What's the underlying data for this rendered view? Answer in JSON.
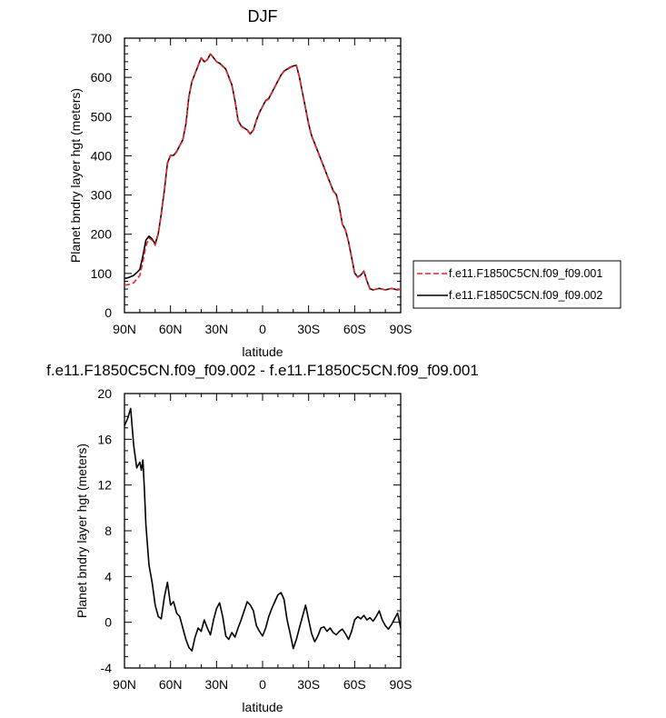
{
  "chart_data": [
    {
      "type": "line",
      "title": "DJF",
      "xlabel": "latitude",
      "ylabel": "Planet bndry layer hgt (meters)",
      "xlim": [
        90,
        -90
      ],
      "ylim": [
        0,
        700
      ],
      "xtick_values": [
        90,
        60,
        30,
        0,
        -30,
        -60,
        -90
      ],
      "xtick_labels": [
        "90N",
        "60N",
        "30N",
        "0",
        "30S",
        "60S",
        "90S"
      ],
      "ytick_values": [
        0,
        100,
        200,
        300,
        400,
        500,
        600,
        700
      ],
      "ytick_labels": [
        "0",
        "100",
        "200",
        "300",
        "400",
        "500",
        "600",
        "700"
      ],
      "legend_position": "right",
      "series": [
        {
          "name": "f.e11.F1850C5CN.f09_f09.001",
          "color": "#e8262b",
          "dash": "dashed",
          "x": [
            90,
            87,
            84,
            82,
            80,
            78,
            76,
            74,
            72,
            70,
            68,
            66,
            64,
            62,
            60,
            58,
            56,
            54,
            52,
            50,
            48,
            46,
            44,
            42,
            40,
            38,
            36,
            34,
            32,
            30,
            28,
            26,
            24,
            22,
            20,
            18,
            16,
            14,
            12,
            10,
            8,
            6,
            4,
            2,
            0,
            -2,
            -4,
            -6,
            -8,
            -10,
            -12,
            -14,
            -16,
            -18,
            -20,
            -22,
            -24,
            -26,
            -28,
            -30,
            -32,
            -34,
            -36,
            -38,
            -40,
            -42,
            -44,
            -46,
            -48,
            -50,
            -52,
            -54,
            -56,
            -58,
            -60,
            -62,
            -64,
            -66,
            -68,
            -70,
            -72,
            -74,
            -76,
            -78,
            -80,
            -82,
            -84,
            -86,
            -88,
            -90
          ],
          "y": [
            70,
            72,
            76,
            85,
            95,
            130,
            170,
            190,
            185,
            172,
            200,
            250,
            310,
            380,
            400,
            400,
            410,
            425,
            440,
            480,
            550,
            590,
            610,
            630,
            650,
            640,
            645,
            660,
            650,
            640,
            635,
            628,
            620,
            600,
            580,
            540,
            490,
            475,
            470,
            465,
            455,
            465,
            490,
            510,
            525,
            540,
            545,
            560,
            575,
            590,
            605,
            615,
            620,
            625,
            628,
            630,
            600,
            560,
            520,
            480,
            450,
            430,
            410,
            390,
            370,
            350,
            330,
            310,
            300,
            270,
            225,
            210,
            180,
            140,
            100,
            90,
            95,
            105,
            80,
            60,
            58,
            60,
            62,
            60,
            58,
            60,
            62,
            60,
            58,
            60
          ]
        },
        {
          "name": "f.e11.F1850C5CN.f09_f09.002",
          "color": "#000000",
          "dash": "solid",
          "x": [
            90,
            87,
            84,
            82,
            80,
            78,
            76,
            74,
            72,
            70,
            68,
            66,
            64,
            62,
            60,
            58,
            56,
            54,
            52,
            50,
            48,
            46,
            44,
            42,
            40,
            38,
            36,
            34,
            32,
            30,
            28,
            26,
            24,
            22,
            20,
            18,
            16,
            14,
            12,
            10,
            8,
            6,
            4,
            2,
            0,
            -2,
            -4,
            -6,
            -8,
            -10,
            -12,
            -14,
            -16,
            -18,
            -20,
            -22,
            -24,
            -26,
            -28,
            -30,
            -32,
            -34,
            -36,
            -38,
            -40,
            -42,
            -44,
            -46,
            -48,
            -50,
            -52,
            -54,
            -56,
            -58,
            -60,
            -62,
            -64,
            -66,
            -68,
            -70,
            -72,
            -74,
            -76,
            -78,
            -80,
            -82,
            -84,
            -86,
            -88,
            -90
          ],
          "y": [
            87,
            90,
            95,
            102,
            110,
            145,
            185,
            195,
            188,
            175,
            202,
            252,
            312,
            382,
            401,
            401,
            411,
            426,
            441,
            481,
            551,
            590,
            610,
            630,
            650,
            640,
            645,
            660,
            650,
            640,
            636,
            629,
            621,
            601,
            581,
            541,
            491,
            476,
            471,
            466,
            456,
            466,
            491,
            511,
            526,
            541,
            546,
            561,
            576,
            591,
            606,
            616,
            621,
            626,
            629,
            631,
            601,
            561,
            521,
            481,
            451,
            431,
            411,
            391,
            371,
            351,
            331,
            311,
            301,
            271,
            226,
            211,
            181,
            141,
            101,
            91,
            96,
            106,
            81,
            61,
            58,
            60,
            62,
            60,
            58,
            60,
            62,
            60,
            58,
            60
          ]
        }
      ]
    },
    {
      "type": "line",
      "title": "f.e11.F1850C5CN.f09_f09.002 - f.e11.F1850C5CN.f09_f09.001",
      "xlabel": "latitude",
      "ylabel": "Planet bndry layer hgt (meters)",
      "xlim": [
        90,
        -90
      ],
      "ylim": [
        -4,
        20
      ],
      "xtick_values": [
        90,
        60,
        30,
        0,
        -30,
        -60,
        -90
      ],
      "xtick_labels": [
        "90N",
        "60N",
        "30N",
        "0",
        "30S",
        "60S",
        "90S"
      ],
      "ytick_values": [
        -4,
        0,
        4,
        8,
        12,
        16,
        20
      ],
      "ytick_labels": [
        "-4",
        "0",
        "4",
        "8",
        "12",
        "16",
        "20"
      ],
      "series": [
        {
          "color": "#000000",
          "dash": "solid",
          "x": [
            90,
            88,
            86,
            84,
            82,
            80,
            79,
            78,
            77,
            76,
            74,
            72,
            70,
            68,
            66,
            64,
            62,
            60,
            58,
            56,
            54,
            52,
            50,
            48,
            46,
            44,
            42,
            40,
            38,
            36,
            34,
            32,
            30,
            28,
            26,
            24,
            22,
            20,
            18,
            16,
            14,
            12,
            10,
            8,
            6,
            4,
            2,
            0,
            -2,
            -4,
            -6,
            -8,
            -10,
            -12,
            -14,
            -16,
            -18,
            -20,
            -22,
            -24,
            -26,
            -28,
            -30,
            -32,
            -34,
            -36,
            -38,
            -40,
            -42,
            -44,
            -46,
            -48,
            -50,
            -52,
            -54,
            -56,
            -58,
            -60,
            -62,
            -64,
            -66,
            -68,
            -70,
            -72,
            -74,
            -76,
            -78,
            -80,
            -82,
            -84,
            -86,
            -88,
            -90
          ],
          "y": [
            17.2,
            17.8,
            18.7,
            15.5,
            13.5,
            14.0,
            13.3,
            14.2,
            11.5,
            8.5,
            5.0,
            3.5,
            1.5,
            0.5,
            0.3,
            2.2,
            3.5,
            1.5,
            1.8,
            0.8,
            0.5,
            -0.5,
            -1.5,
            -2.2,
            -2.5,
            -1.3,
            -0.5,
            -0.8,
            0.2,
            -0.5,
            -1.1,
            0.2,
            1.2,
            1.7,
            0.5,
            -1.2,
            -1.5,
            -0.9,
            -1.3,
            -0.5,
            0.2,
            1.0,
            1.8,
            1.5,
            1.0,
            -0.3,
            -0.8,
            -1.2,
            -0.5,
            0.5,
            1.2,
            1.8,
            2.4,
            2.6,
            2.0,
            0.2,
            -1.0,
            -2.3,
            -1.5,
            -0.5,
            0.5,
            1.5,
            0.2,
            -1.0,
            -1.7,
            -1.2,
            -0.5,
            -0.4,
            -0.8,
            -0.5,
            -0.9,
            -1.1,
            -0.8,
            -0.6,
            -1.0,
            -1.5,
            -0.8,
            0.2,
            0.5,
            0.3,
            0.6,
            0.2,
            0.4,
            0.1,
            0.5,
            1.0,
            0.2,
            -0.3,
            -0.6,
            -0.2,
            0.3,
            0.8,
            -0.5
          ]
        }
      ]
    }
  ]
}
